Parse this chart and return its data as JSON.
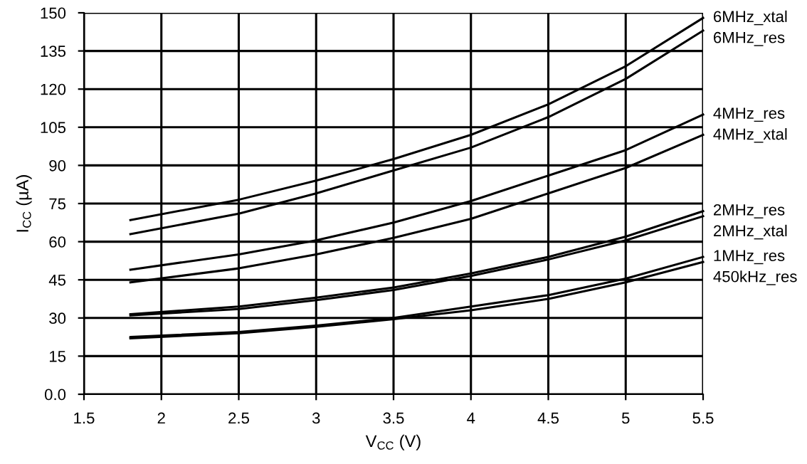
{
  "chart_data": {
    "type": "line",
    "xlabel": "V$_{CC}$ (V)",
    "ylabel": "I$_{CC}$ (µA)",
    "xlim": [
      1.5,
      5.5
    ],
    "xticks": [
      1.5,
      2,
      2.5,
      3,
      3.5,
      4,
      4.5,
      5,
      5.5
    ],
    "ylim": [
      0,
      150
    ],
    "yticks": [
      {
        "value": 0,
        "label": "0.0"
      },
      15,
      30,
      45,
      60,
      75,
      90,
      105,
      120,
      135,
      150
    ],
    "grid": true,
    "legend": false,
    "marker": "none",
    "line_style": "solid",
    "x": [
      1.8,
      2.5,
      3,
      3.5,
      4,
      4.5,
      5,
      5.5
    ],
    "series": [
      {
        "name": "6MHz_xtal",
        "color": "#000000",
        "values": [
          68.5,
          76.5,
          84,
          92.5,
          102,
          114,
          129,
          148
        ]
      },
      {
        "name": "6MHz_res",
        "color": "#000000",
        "values": [
          63,
          71,
          79,
          88,
          97,
          109,
          124,
          143
        ]
      },
      {
        "name": "4MHz_res",
        "color": "#000000",
        "values": [
          49,
          55,
          60.5,
          67.5,
          76,
          86,
          96,
          110
        ]
      },
      {
        "name": "4MHz_xtal",
        "color": "#000000",
        "values": [
          44,
          49.5,
          55,
          61.5,
          69,
          79,
          89,
          102
        ]
      },
      {
        "name": "2MHz_res",
        "color": "#000000",
        "values": [
          31.5,
          34.5,
          38,
          42,
          47.5,
          54,
          62,
          72
        ]
      },
      {
        "name": "2MHz_xtal",
        "color": "#000000",
        "values": [
          31,
          33.5,
          37,
          41,
          46.5,
          53,
          60.5,
          70
        ]
      },
      {
        "name": "1MHz_res",
        "color": "#000000",
        "values": [
          22.5,
          24.5,
          27,
          30,
          34.5,
          39,
          45.5,
          54
        ]
      },
      {
        "name": "450kHz_res",
        "color": "#000000",
        "values": [
          22,
          24,
          26.5,
          29.5,
          33,
          37.5,
          44,
          52
        ]
      }
    ]
  }
}
